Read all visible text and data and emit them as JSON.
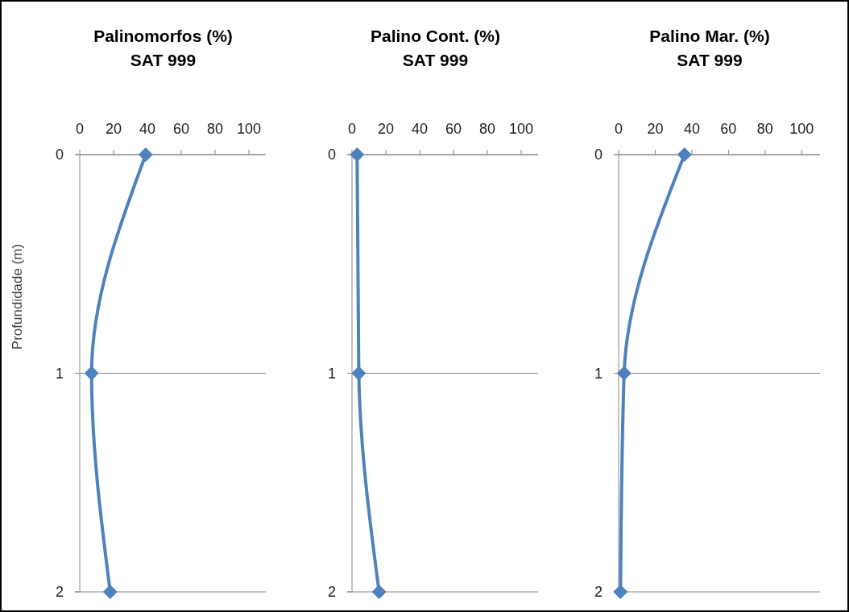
{
  "chart_data": [
    {
      "type": "line",
      "title": "Palinomorfos (%)",
      "subtitle": "SAT 999",
      "ylabel": "Profundidade  (m)",
      "xlim": [
        0,
        110
      ],
      "xticks": [
        0,
        20,
        40,
        60,
        80,
        100
      ],
      "ylim": [
        2,
        0
      ],
      "yticks": [
        0,
        1,
        2
      ],
      "grid": "y",
      "marker": "diamond",
      "series": [
        {
          "color": "#4f81bd",
          "x": [
            39,
            7,
            18
          ],
          "values": [
            0,
            1,
            2
          ]
        }
      ]
    },
    {
      "type": "line",
      "title": "Palino Cont. (%)",
      "subtitle": "SAT 999",
      "xlim": [
        0,
        110
      ],
      "xticks": [
        0,
        20,
        40,
        60,
        80,
        100
      ],
      "ylim": [
        2,
        0
      ],
      "yticks": [
        0,
        1,
        2
      ],
      "grid": "y",
      "marker": "diamond",
      "series": [
        {
          "color": "#4f81bd",
          "x": [
            3,
            4,
            16
          ],
          "values": [
            0,
            1,
            2
          ]
        }
      ]
    },
    {
      "type": "line",
      "title": "Palino Mar. (%)",
      "subtitle": "SAT 999",
      "xlim": [
        0,
        110
      ],
      "xticks": [
        0,
        20,
        40,
        60,
        80,
        100
      ],
      "ylim": [
        2,
        0
      ],
      "yticks": [
        0,
        1,
        2
      ],
      "grid": "y",
      "marker": "diamond",
      "series": [
        {
          "color": "#4f81bd",
          "x": [
            36,
            3,
            1
          ],
          "values": [
            0,
            1,
            2
          ]
        }
      ]
    }
  ]
}
